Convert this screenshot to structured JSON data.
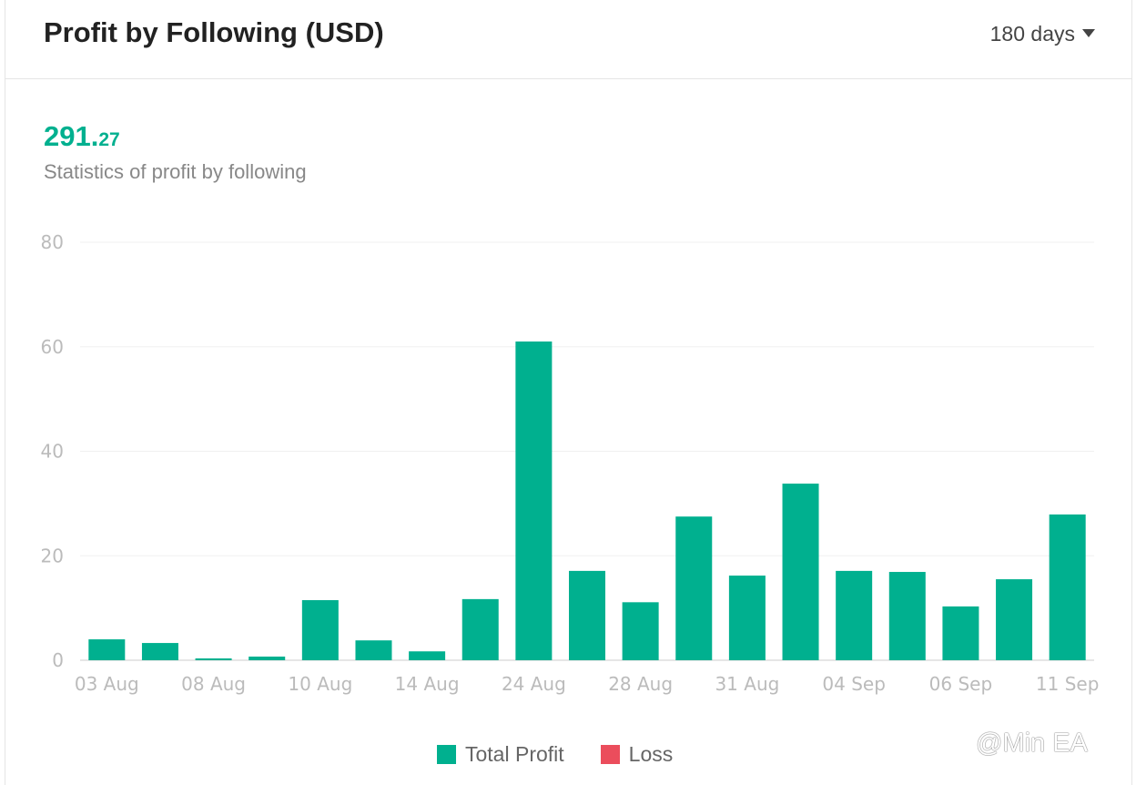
{
  "header": {
    "title": "Profit by Following (USD)",
    "range_label": "180 days"
  },
  "summary": {
    "total_int": "291.",
    "total_dec": "27",
    "subtitle": "Statistics of profit by following"
  },
  "colors": {
    "profit": "#00b08f",
    "loss": "#eb4d5c"
  },
  "watermark": "@Min EA",
  "chart_data": {
    "type": "bar",
    "ylim": [
      0,
      80
    ],
    "yticks": [
      0,
      20,
      40,
      60,
      80
    ],
    "grid": true,
    "legend_placement": "bottom",
    "categories": [
      "03 Aug",
      "",
      "08 Aug",
      "",
      "10 Aug",
      "",
      "14 Aug",
      "",
      "24 Aug",
      "",
      "28 Aug",
      "",
      "31 Aug",
      "",
      "04 Sep",
      "",
      "06 Sep",
      "",
      "11 Sep"
    ],
    "series": [
      {
        "name": "Total Profit",
        "values": [
          4.0,
          3.3,
          0.35,
          0.7,
          11.5,
          3.8,
          1.7,
          11.7,
          61.0,
          17.1,
          11.1,
          27.5,
          16.2,
          33.8,
          17.1,
          16.9,
          10.3,
          15.5,
          27.9
        ]
      },
      {
        "name": "Loss",
        "values": [
          0,
          0,
          0,
          0,
          0,
          0,
          0,
          0,
          0,
          0,
          0,
          0,
          0,
          0,
          0,
          0,
          0,
          0,
          0
        ]
      }
    ]
  }
}
